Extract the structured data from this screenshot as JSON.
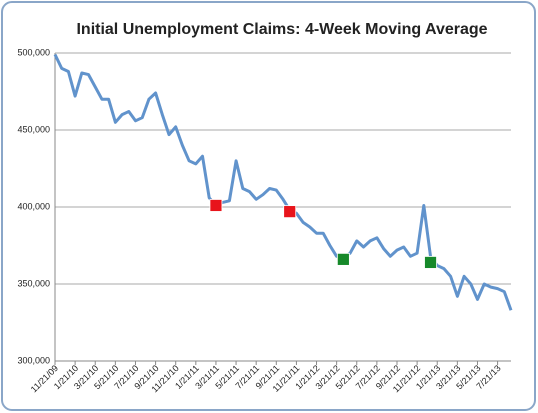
{
  "chart_data": {
    "type": "line",
    "title": "Initial Unemployment Claims: 4-Week Moving Average",
    "categories": [
      "11/21/09",
      null,
      null,
      "1/21/10",
      null,
      null,
      "3/21/10",
      null,
      null,
      "5/21/10",
      null,
      null,
      "7/21/10",
      null,
      null,
      "9/21/10",
      null,
      null,
      "11/21/10",
      null,
      null,
      "1/21/11",
      null,
      null,
      "3/21/11",
      null,
      null,
      "5/21/11",
      null,
      null,
      "7/21/11",
      null,
      null,
      "9/21/11",
      null,
      null,
      "11/21/11",
      null,
      null,
      "1/21/12",
      null,
      null,
      "3/21/12",
      null,
      null,
      "5/21/12",
      null,
      null,
      "7/21/12",
      null,
      null,
      "9/21/12",
      null,
      null,
      "11/21/12",
      null,
      null,
      "1/21/13",
      null,
      null,
      "3/21/13",
      null,
      null,
      "5/21/13",
      null,
      null,
      "7/21/13",
      null,
      null
    ],
    "series": [
      {
        "color": "#6193cc",
        "style": "line",
        "values": [
          499000,
          490000,
          488000,
          472000,
          487000,
          486000,
          478000,
          470000,
          470000,
          455000,
          460000,
          462000,
          456000,
          458000,
          470000,
          474000,
          460000,
          447000,
          452000,
          440000,
          430000,
          428000,
          433000,
          406000,
          401000,
          403000,
          404000,
          430000,
          412000,
          410000,
          405000,
          408000,
          412000,
          411000,
          405000,
          398000,
          396000,
          390000,
          387000,
          383000,
          383000,
          375000,
          368000,
          367000,
          370000,
          378000,
          374000,
          378000,
          380000,
          373000,
          368000,
          372000,
          374000,
          368000,
          370000,
          401000,
          368000,
          362000,
          360000,
          355000,
          342000,
          355000,
          350000,
          340000,
          350000,
          348000,
          347000,
          345000,
          333000
        ]
      },
      {
        "color": "#e8141b",
        "style": "markers",
        "values": [
          null,
          null,
          null,
          null,
          null,
          null,
          null,
          null,
          null,
          null,
          null,
          null,
          null,
          null,
          null,
          null,
          null,
          null,
          null,
          null,
          null,
          null,
          null,
          null,
          401000,
          null,
          null,
          null,
          null,
          null,
          null,
          null,
          null,
          null,
          null,
          397000,
          null,
          null,
          null,
          null,
          null,
          null,
          null,
          null,
          null,
          null,
          null,
          null,
          null,
          null,
          null,
          null,
          null,
          null,
          null,
          null,
          null,
          null,
          null,
          null,
          null,
          null,
          null,
          null,
          null,
          null,
          null,
          null,
          null
        ]
      },
      {
        "color": "#16892a",
        "style": "markers",
        "values": [
          null,
          null,
          null,
          null,
          null,
          null,
          null,
          null,
          null,
          null,
          null,
          null,
          null,
          null,
          null,
          null,
          null,
          null,
          null,
          null,
          null,
          null,
          null,
          null,
          null,
          null,
          null,
          null,
          null,
          null,
          null,
          null,
          null,
          null,
          null,
          null,
          null,
          null,
          null,
          null,
          null,
          null,
          null,
          366000,
          null,
          null,
          null,
          null,
          null,
          null,
          null,
          null,
          null,
          null,
          null,
          null,
          364000,
          null,
          null,
          null,
          null,
          null,
          null,
          null,
          null,
          null,
          null,
          null,
          null
        ]
      }
    ],
    "ylim": [
      300000,
      500000
    ],
    "yticks": [
      {
        "value": 300000,
        "label": "300,000"
      },
      {
        "value": 350000,
        "label": "350,000"
      },
      {
        "value": 400000,
        "label": "400,000"
      },
      {
        "value": 450000,
        "label": "450,000"
      },
      {
        "value": 500000,
        "label": "500,000"
      }
    ],
    "grid": true
  }
}
